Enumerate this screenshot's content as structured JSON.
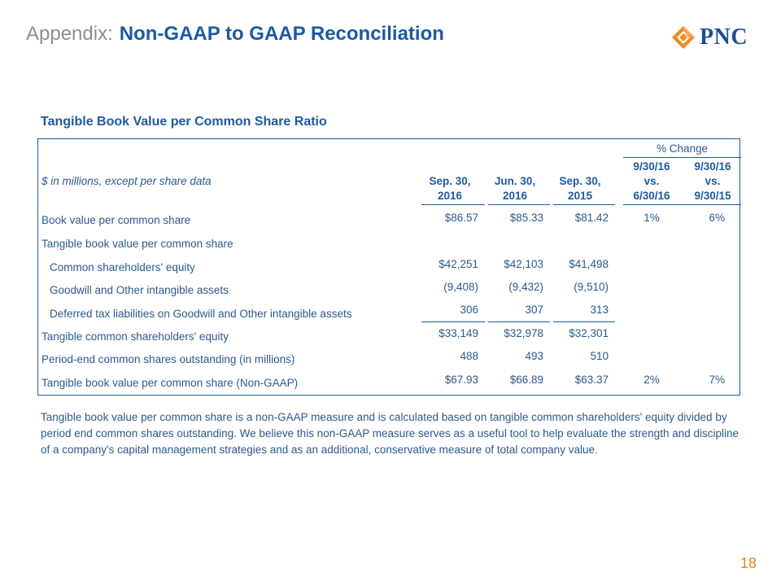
{
  "header": {
    "prefix": "Appendix:",
    "title": "Non-GAAP to GAAP Reconciliation",
    "logo_text": "PNC",
    "logo_icon": "pnc-triangle-logo-icon"
  },
  "section_title": "Tangible Book Value per Common Share Ratio",
  "table": {
    "pct_change_label": "% Change",
    "row_header_label": "$ in millions, except per share data",
    "columns": [
      {
        "line1": "Sep. 30,",
        "line2": "2016"
      },
      {
        "line1": "Jun. 30,",
        "line2": "2016"
      },
      {
        "line1": "Sep. 30,",
        "line2": "2015"
      }
    ],
    "change_columns": [
      {
        "line1": "9/30/16",
        "line2": "vs.",
        "line3": "6/30/16"
      },
      {
        "line1": "9/30/16",
        "line2": "vs.",
        "line3": "9/30/15"
      }
    ],
    "rows": [
      {
        "label": "Book value per common share",
        "values": [
          "$86.57",
          "$85.33",
          "$81.42"
        ],
        "changes": [
          "1%",
          "6%"
        ]
      },
      {
        "label": "Tangible book value per common share",
        "values": [
          "",
          "",
          ""
        ],
        "changes": [
          "",
          ""
        ]
      },
      {
        "label": "Common shareholders' equity",
        "values": [
          "$42,251",
          "$42,103",
          "$41,498"
        ],
        "changes": [
          "",
          ""
        ]
      },
      {
        "label": "Goodwill and Other intangible assets",
        "values": [
          "(9,408)",
          "(9,432)",
          "(9,510)"
        ],
        "changes": [
          "",
          ""
        ]
      },
      {
        "label": "Deferred tax liabilities on Goodwill and Other intangible assets",
        "values": [
          "306",
          "307",
          "313"
        ],
        "changes": [
          "",
          ""
        ]
      },
      {
        "label": "Tangible common shareholders' equity",
        "values": [
          "$33,149",
          "$32,978",
          "$32,301"
        ],
        "changes": [
          "",
          ""
        ]
      },
      {
        "label": "Period-end common shares outstanding (in millions)",
        "values": [
          "488",
          "493",
          "510"
        ],
        "changes": [
          "",
          ""
        ]
      },
      {
        "label": "Tangible book value per common share (Non-GAAP)",
        "values": [
          "$67.93",
          "$66.89",
          "$63.37"
        ],
        "changes": [
          "2%",
          "7%"
        ]
      }
    ]
  },
  "footnote": "Tangible book value per common share is a non-GAAP measure and is calculated based on tangible common shareholders' equity divided by period end common shares outstanding. We believe this non-GAAP measure serves as a useful tool to help evaluate the strength and discipline of a company's capital management strategies and as an additional, conservative measure of total company value.",
  "page_number": "18",
  "colors": {
    "title_blue": "#1c5aa3",
    "text_blue": "#2c5a8a",
    "gray": "#8a8f96",
    "orange": "#e8822a"
  }
}
